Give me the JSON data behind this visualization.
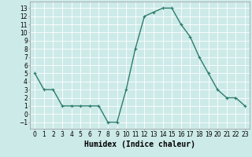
{
  "x": [
    0,
    1,
    2,
    3,
    4,
    5,
    6,
    7,
    8,
    9,
    10,
    11,
    12,
    13,
    14,
    15,
    16,
    17,
    18,
    19,
    20,
    21,
    22,
    23
  ],
  "y": [
    5,
    3,
    3,
    1,
    1,
    1,
    1,
    1,
    -1,
    -1,
    3,
    8,
    12,
    12.5,
    13,
    13,
    11,
    9.5,
    7,
    5,
    3,
    2,
    2,
    1
  ],
  "line_color": "#2e7d6e",
  "marker": "+",
  "marker_color": "#2e7d6e",
  "bg_color": "#cceae8",
  "grid_color": "#ffffff",
  "grid_minor_color": "#ddf5f3",
  "xlabel": "Humidex (Indice chaleur)",
  "xlabel_fontsize": 7,
  "ylabel_ticks": [
    -1,
    0,
    1,
    2,
    3,
    4,
    5,
    6,
    7,
    8,
    9,
    10,
    11,
    12,
    13
  ],
  "xlim": [
    -0.5,
    23.5
  ],
  "ylim": [
    -1.8,
    13.8
  ],
  "xticks": [
    0,
    1,
    2,
    3,
    4,
    5,
    6,
    7,
    8,
    9,
    10,
    11,
    12,
    13,
    14,
    15,
    16,
    17,
    18,
    19,
    20,
    21,
    22,
    23
  ],
  "tick_fontsize": 5.5,
  "linewidth": 1.0,
  "markersize": 3.5
}
